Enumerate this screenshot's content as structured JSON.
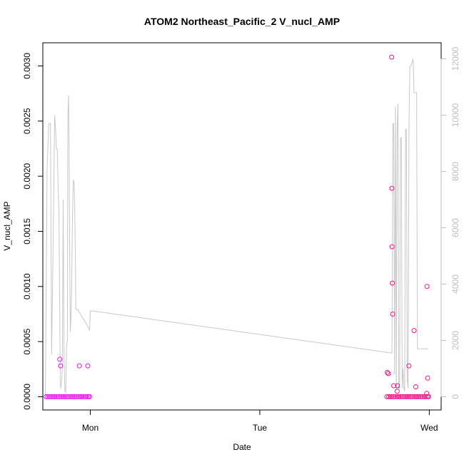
{
  "chart_data": {
    "type": "scatter",
    "title": "ATOM2 Northeast_Pacific_2 V_nucl_AMP",
    "xlabel": "Date",
    "ylabel": "V_nucl_AMP",
    "x_ticks": [
      {
        "label": "Mon",
        "x": 1.0
      },
      {
        "label": "Tue",
        "x": 2.0
      },
      {
        "label": "Wed",
        "x": 3.0
      }
    ],
    "xlim": [
      0.72,
      3.07
    ],
    "ylim": [
      -0.00012,
      0.00321
    ],
    "y_ticks": [
      0.0,
      0.0005,
      0.001,
      0.0015,
      0.002,
      0.0025,
      0.003
    ],
    "y_tick_labels": [
      "0.0000",
      "0.0005",
      "0.0010",
      "0.0015",
      "0.0020",
      "0.0025",
      "0.0030"
    ],
    "y2lim": [
      -470,
      12570
    ],
    "y2_ticks": [
      0,
      2000,
      4000,
      6000,
      8000,
      10000,
      12000
    ],
    "y2_tick_labels": [
      "0",
      "2000",
      "4000",
      "6000",
      "8000",
      "10000",
      "12000"
    ],
    "grid": false,
    "series": [
      {
        "role": "secondary-line",
        "axis": "right",
        "color": "#c8c8c8",
        "x": [
          0.735,
          0.745,
          0.755,
          0.765,
          0.772,
          0.78,
          0.79,
          0.795,
          0.8,
          0.805,
          0.81,
          0.815,
          0.82,
          0.823,
          0.826,
          0.83,
          0.835,
          0.84,
          0.845,
          0.85,
          0.855,
          0.86,
          0.865,
          0.868,
          0.872,
          0.875,
          0.878,
          0.882,
          0.886,
          0.89,
          0.895,
          0.9,
          0.905,
          0.91,
          0.915,
          0.92,
          0.925,
          0.93,
          0.935,
          0.94,
          0.945,
          0.95,
          0.955,
          0.96,
          0.965,
          0.97,
          0.975,
          0.98,
          0.985,
          0.988,
          0.992,
          0.996,
          1.0,
          1.01,
          2.78,
          2.785,
          2.79,
          2.795,
          2.8,
          2.805,
          2.81,
          2.815,
          2.82,
          2.825,
          2.83,
          2.835,
          2.84,
          2.845,
          2.85,
          2.855,
          2.86,
          2.865,
          2.87,
          2.875,
          2.88,
          2.885,
          2.89,
          2.895,
          2.9,
          2.905,
          2.91,
          2.915,
          2.92,
          2.925,
          2.93,
          2.935,
          2.94,
          2.945,
          2.95,
          2.955,
          2.96,
          2.965,
          2.97,
          2.975,
          2.98,
          2.985,
          2.99,
          2.995
        ],
        "y": [
          30,
          8000,
          9700,
          9700,
          1500,
          5000,
          10000,
          9500,
          8800,
          8800,
          7500,
          6500,
          3000,
          500,
          300,
          500,
          1000,
          7000,
          1400,
          200,
          150,
          1800,
          2000,
          10000,
          10700,
          9000,
          5500,
          2300,
          2800,
          4000,
          6500,
          7700,
          7600,
          6000,
          3100,
          3100,
          3100,
          3050,
          3000,
          2950,
          2900,
          2850,
          2800,
          2750,
          2700,
          2650,
          2600,
          2550,
          2500,
          2450,
          2400,
          2350,
          3050,
          3050,
          1550,
          9700,
          9700,
          800,
          10300,
          200,
          9500,
          10400,
          300,
          300,
          9200,
          9200,
          300,
          1000,
          300,
          200,
          9500,
          9500,
          600,
          300,
          9500,
          11700,
          11750,
          11800,
          11900,
          12000,
          10800,
          10800,
          10800,
          10800,
          1700,
          1700,
          1700,
          1700,
          1700,
          1700,
          1700,
          1700,
          1700,
          1700,
          1700,
          1700,
          1700,
          1700
        ]
      },
      {
        "role": "points-monday",
        "axis": "left",
        "color": "#e81ce8",
        "x": [
          0.74,
          0.75,
          0.76,
          0.77,
          0.78,
          0.79,
          0.8,
          0.81,
          0.82,
          0.83,
          0.84,
          0.85,
          0.86,
          0.87,
          0.88,
          0.89,
          0.9,
          0.91,
          0.92,
          0.93,
          0.94,
          0.95,
          0.96,
          0.97,
          0.98,
          0.99,
          0.995,
          0.82,
          0.825,
          0.935,
          0.985
        ],
        "y": [
          0.0,
          0.0,
          0.0,
          0.0,
          0.0,
          0.0,
          0.0,
          0.0,
          0.0,
          0.0,
          0.0,
          0.0,
          0.0,
          0.0,
          0.0,
          0.0,
          0.0,
          0.0,
          0.0,
          0.0,
          0.0,
          0.0,
          0.0,
          0.0,
          0.0,
          0.0,
          0.0,
          0.00034,
          0.00028,
          0.00028,
          0.00028
        ]
      },
      {
        "role": "points-wednesday",
        "axis": "left",
        "color": "#f0188c",
        "x": [
          2.75,
          2.76,
          2.77,
          2.78,
          2.79,
          2.8,
          2.81,
          2.82,
          2.83,
          2.84,
          2.85,
          2.86,
          2.87,
          2.88,
          2.89,
          2.9,
          2.91,
          2.92,
          2.93,
          2.94,
          2.95,
          2.96,
          2.97,
          2.98,
          2.99,
          2.995,
          2.752,
          2.758,
          2.778,
          2.779,
          2.78,
          2.782,
          2.784,
          2.79,
          2.81,
          2.812,
          2.91,
          2.986,
          2.99,
          2.88,
          2.92,
          2.985
        ],
        "y": [
          0.0,
          0.0,
          0.0,
          0.0,
          0.0,
          0.0,
          0.0,
          0.0,
          0.0,
          0.0,
          0.0,
          0.0,
          0.0,
          0.0,
          0.0,
          0.0,
          0.0,
          0.0,
          0.0,
          0.0,
          0.0,
          0.0,
          0.0,
          0.0,
          0.0,
          0.0,
          0.00022,
          0.00021,
          0.00308,
          0.00189,
          0.00136,
          0.00103,
          0.00075,
          0.0001,
          5e-05,
          0.0001,
          0.0006,
          0.001,
          0.00017,
          0.00028,
          9e-05,
          3e-05
        ]
      }
    ]
  }
}
